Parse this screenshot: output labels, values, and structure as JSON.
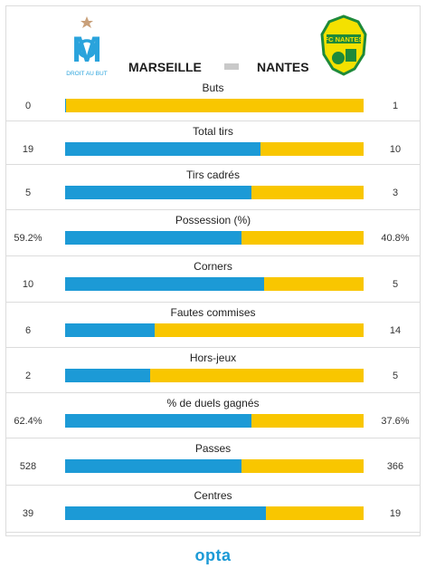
{
  "match": {
    "home": {
      "name": "MARSEILLE",
      "color": "#1c9ad6",
      "logo": "om-crest-icon",
      "logo_text": "DROIT AU BUT"
    },
    "away": {
      "name": "NANTES",
      "color": "#f9c600",
      "logo": "fc-nantes-crest-icon",
      "logo_text": "FC NANTES"
    }
  },
  "footer": {
    "brand": "opta"
  },
  "chart_data": {
    "type": "bar",
    "orientation": "horizontal",
    "stacked": "100%",
    "series": [
      {
        "name": "MARSEILLE",
        "values": [
          0,
          19,
          5,
          59.2,
          10,
          6,
          2,
          62.4,
          528,
          39
        ],
        "labels": [
          "0",
          "19",
          "5",
          "59.2%",
          "10",
          "6",
          "2",
          "62.4%",
          "528",
          "39"
        ]
      },
      {
        "name": "NANTES",
        "values": [
          1,
          10,
          3,
          40.8,
          5,
          14,
          5,
          37.6,
          366,
          19
        ],
        "labels": [
          "1",
          "10",
          "3",
          "40.8%",
          "5",
          "14",
          "5",
          "37.6%",
          "366",
          "19"
        ]
      }
    ],
    "categories": [
      "Buts",
      "Total tirs",
      "Tirs cadrés",
      "Possession (%)",
      "Corners",
      "Fautes commises",
      "Hors-jeux",
      "% de duels gagnés",
      "Passes",
      "Centres"
    ],
    "legend": "top"
  }
}
